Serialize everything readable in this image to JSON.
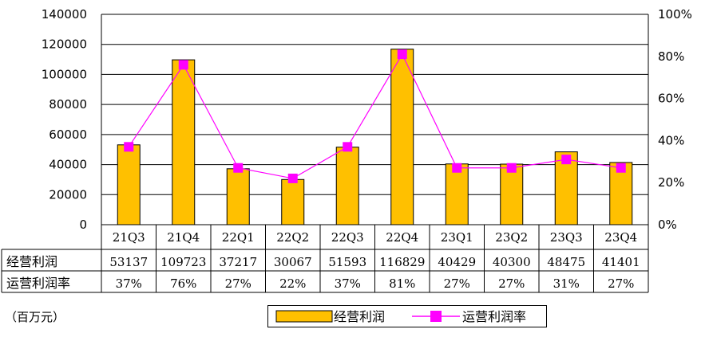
{
  "chart_data": {
    "type": "bar",
    "categories": [
      "21Q3",
      "21Q4",
      "22Q1",
      "22Q2",
      "22Q3",
      "22Q4",
      "23Q1",
      "23Q2",
      "23Q3",
      "23Q4"
    ],
    "series": [
      {
        "name": "经营利润",
        "type": "bar",
        "axis": "left",
        "values": [
          53137,
          109723,
          37217,
          30067,
          51593,
          116829,
          40429,
          40300,
          48475,
          41401
        ]
      },
      {
        "name": "运营利润率",
        "type": "line",
        "axis": "right",
        "values": [
          0.37,
          0.76,
          0.27,
          0.22,
          0.37,
          0.81,
          0.27,
          0.27,
          0.31,
          0.27
        ]
      }
    ],
    "y_left": {
      "ylim": [
        0,
        140000
      ],
      "ticks": [
        "0",
        "20000",
        "40000",
        "60000",
        "80000",
        "100000",
        "120000",
        "140000"
      ]
    },
    "y_right": {
      "ylim": [
        0,
        1
      ],
      "ticks": [
        "0%",
        "20%",
        "40%",
        "60%",
        "80%",
        "100%"
      ]
    },
    "table": {
      "rows": [
        {
          "label": "经营利润",
          "cells": [
            "53137",
            "109723",
            "37217",
            "30067",
            "51593",
            "116829",
            "40429",
            "40300",
            "48475",
            "41401"
          ]
        },
        {
          "label": "运营利润率",
          "cells": [
            "37%",
            "76%",
            "27%",
            "22%",
            "37%",
            "81%",
            "27%",
            "27%",
            "31%",
            "27%"
          ]
        }
      ]
    },
    "legend": {
      "position": "bottom",
      "labels": [
        "经营利润",
        "运营利润率"
      ]
    },
    "unit_note": "（百万元）",
    "grid": true,
    "colors": {
      "bar_fill": "#FFC000",
      "bar_stroke": "#000000",
      "line": "#FF00FF",
      "marker": "#FF00FF"
    }
  }
}
